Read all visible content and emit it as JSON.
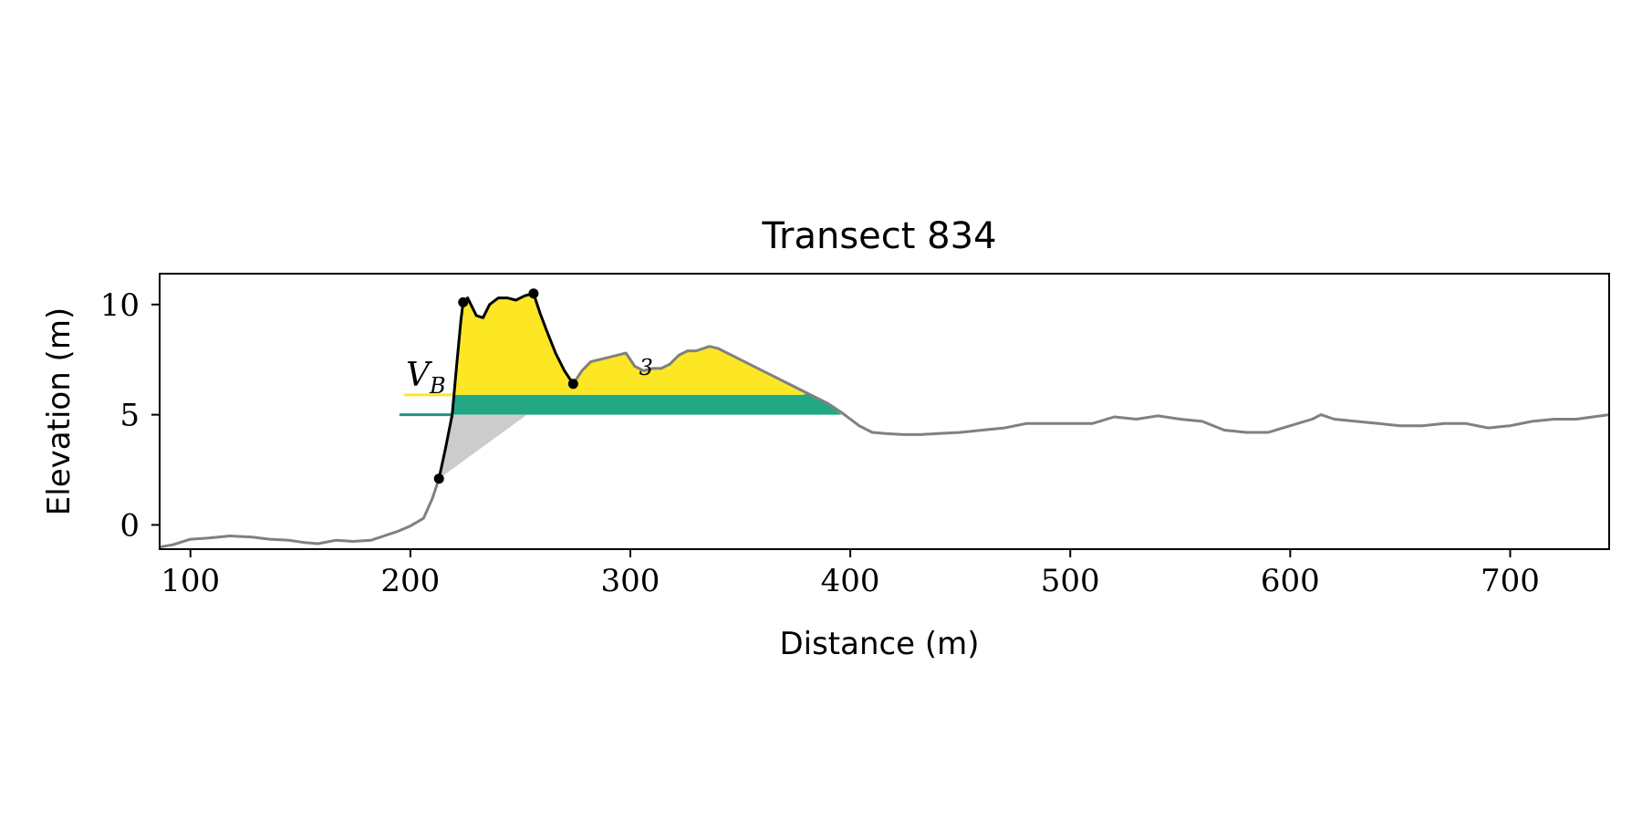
{
  "chart_data": {
    "type": "area",
    "title": "Transect 834",
    "xlabel": "Distance (m)",
    "ylabel": "Elevation (m)",
    "xlim": [
      86,
      745
    ],
    "ylim": [
      -1.1,
      11.4
    ],
    "xticks": [
      100,
      200,
      300,
      400,
      500,
      600,
      700
    ],
    "yticks": [
      0,
      5,
      10
    ],
    "grid": false,
    "colors": {
      "profile": "#808080",
      "dune": "#000000",
      "upper_fill": "#fde725",
      "middle_fill": "#22a884",
      "lower_fill": "#cccccc",
      "upper_line": "#fde725",
      "middle_line": "#21918c",
      "frame": "#000000"
    },
    "profile": {
      "x": [
        86,
        92,
        100,
        108,
        118,
        128,
        136,
        145,
        152,
        158,
        166,
        174,
        182,
        188,
        194,
        200,
        206,
        210,
        213
      ],
      "y": [
        -1.0,
        -0.9,
        -0.65,
        -0.6,
        -0.5,
        -0.55,
        -0.65,
        -0.7,
        -0.8,
        -0.85,
        -0.7,
        -0.75,
        -0.7,
        -0.5,
        -0.3,
        -0.05,
        0.3,
        1.2,
        2.1
      ]
    },
    "profile_beach": {
      "x": [
        274,
        278,
        282,
        286,
        290,
        294,
        298,
        302,
        306,
        310,
        314,
        318,
        322,
        326,
        330,
        336,
        340,
        350,
        360,
        370,
        380,
        390,
        396,
        404,
        410,
        416,
        424,
        432,
        440,
        450,
        460,
        470,
        480,
        490,
        500,
        510,
        520,
        530,
        540,
        550,
        560,
        570,
        580,
        590,
        600,
        610,
        614,
        620,
        630,
        640,
        650,
        660,
        670,
        680,
        690,
        700,
        710,
        720,
        730,
        745
      ],
      "y": [
        6.4,
        7.0,
        7.4,
        7.5,
        7.6,
        7.7,
        7.8,
        7.2,
        7.0,
        7.1,
        7.1,
        7.3,
        7.7,
        7.9,
        7.9,
        8.1,
        8.0,
        7.5,
        7.0,
        6.5,
        6.0,
        5.5,
        5.1,
        4.5,
        4.2,
        4.15,
        4.1,
        4.1,
        4.15,
        4.2,
        4.3,
        4.4,
        4.6,
        4.6,
        4.6,
        4.6,
        4.9,
        4.8,
        4.95,
        4.8,
        4.7,
        4.3,
        4.2,
        4.2,
        4.5,
        4.8,
        5.0,
        4.8,
        4.7,
        4.6,
        4.5,
        4.5,
        4.6,
        4.6,
        4.4,
        4.5,
        4.7,
        4.8,
        4.8,
        5.0
      ]
    },
    "dune_profile": {
      "x": [
        213,
        216,
        219,
        221,
        223,
        224,
        226,
        230,
        233,
        236,
        240,
        244,
        248,
        252,
        256,
        259,
        262,
        266,
        270,
        274
      ],
      "y": [
        2.1,
        3.5,
        5.0,
        7.2,
        9.3,
        10.1,
        10.3,
        9.5,
        9.4,
        10.0,
        10.3,
        10.3,
        10.2,
        10.4,
        10.5,
        9.6,
        8.8,
        7.8,
        7.0,
        6.4
      ]
    },
    "points": [
      {
        "x": 213,
        "y": 2.1
      },
      {
        "x": 224,
        "y": 10.1
      },
      {
        "x": 256,
        "y": 10.5
      },
      {
        "x": 274,
        "y": 6.4
      }
    ],
    "levels": {
      "upper": 5.9,
      "lower": 5.0,
      "upper_line_x": [
        197,
        219
      ],
      "lower_line_x": [
        195,
        219
      ]
    },
    "lower_wedge": [
      [
        219,
        5.0
      ],
      [
        213,
        2.1
      ],
      [
        253,
        5.0
      ]
    ],
    "annotations": [
      {
        "text": "V",
        "sub": "B",
        "x": 198,
        "y": 6.3
      },
      {
        "text": "",
        "sub": "3",
        "x": 304,
        "y": 6.8
      }
    ]
  }
}
